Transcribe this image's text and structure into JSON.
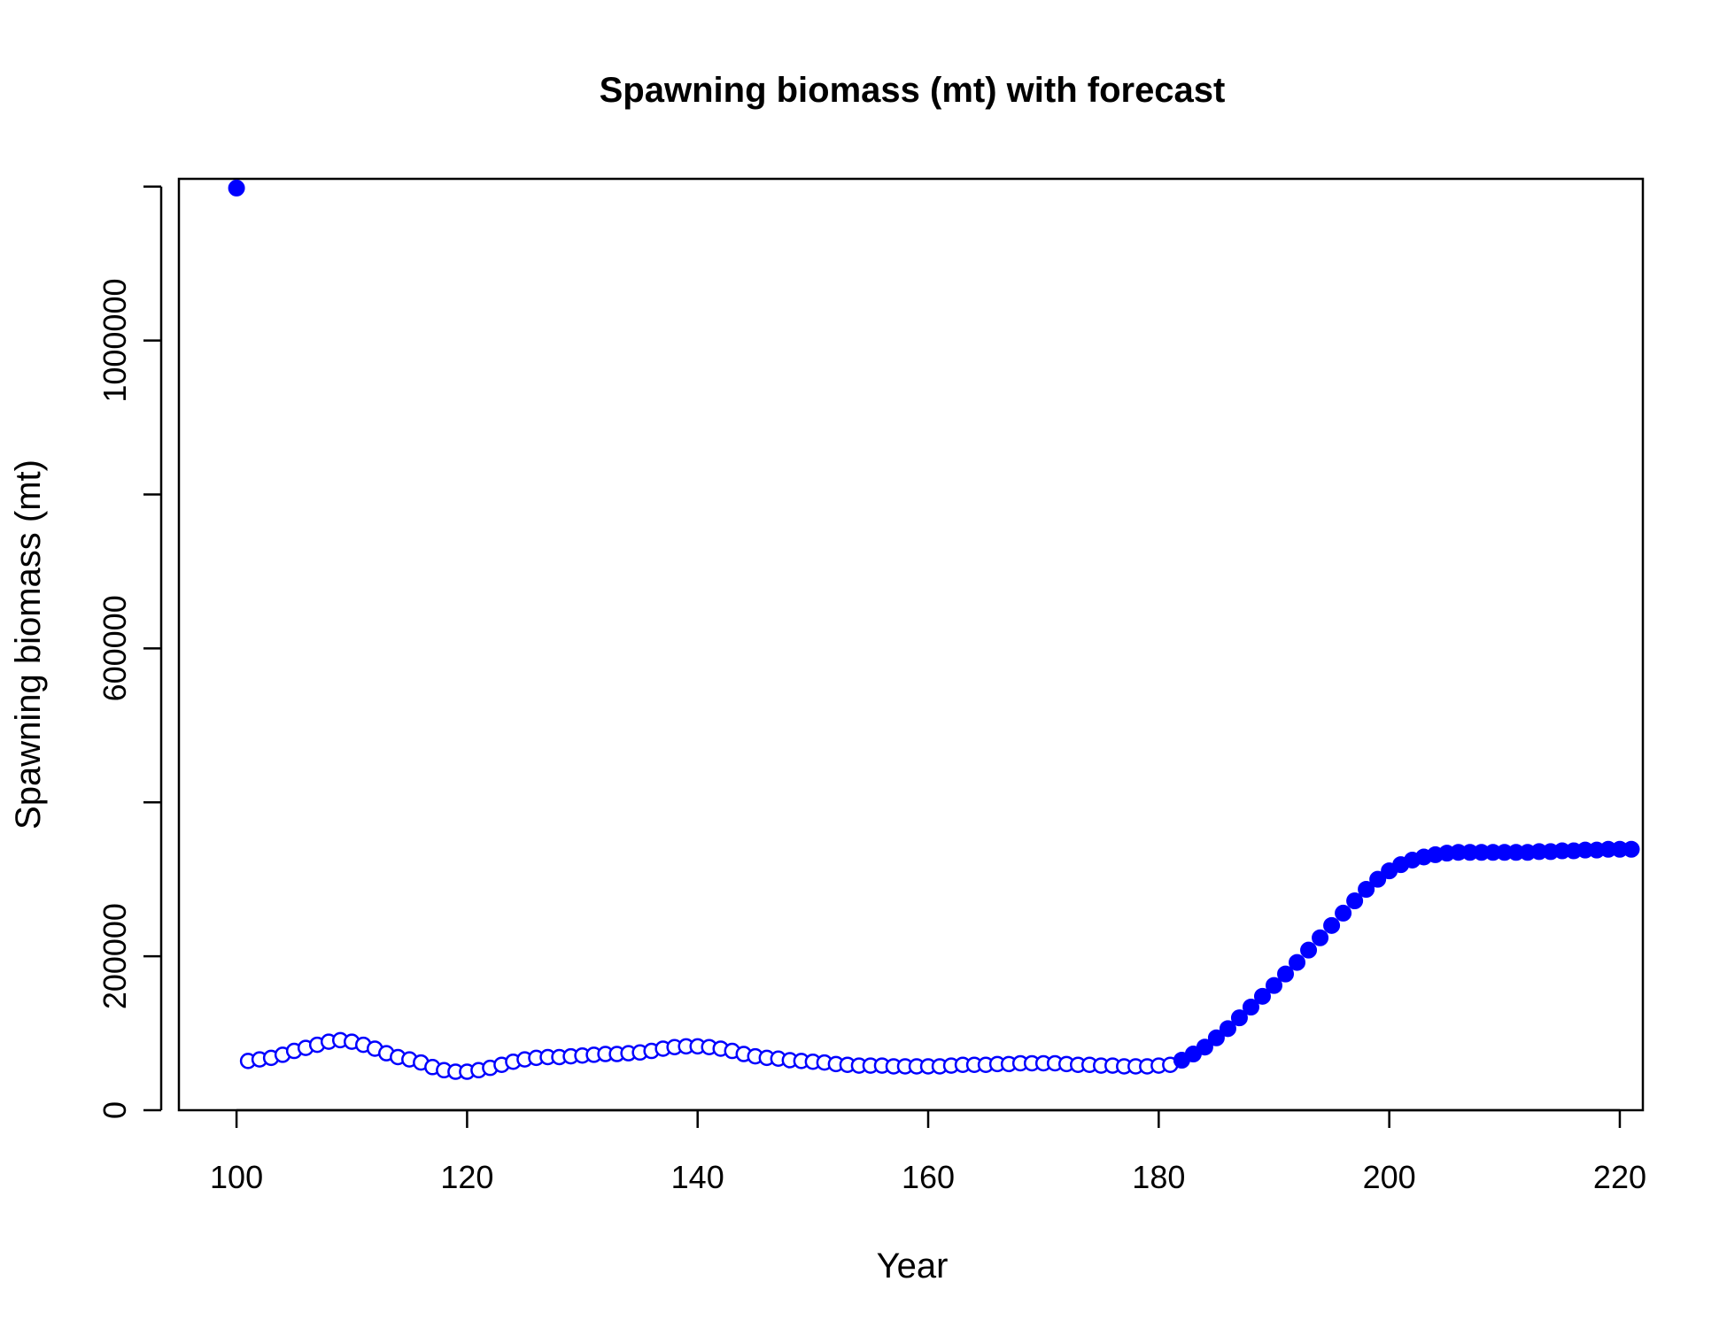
{
  "chart_data": {
    "type": "scatter",
    "title": "Spawning biomass (mt) with forecast",
    "xlabel": "Year",
    "ylabel": "Spawning biomass (mt)",
    "xlim": [
      95,
      222
    ],
    "ylim": [
      0,
      1210000
    ],
    "xticks": [
      100,
      120,
      140,
      160,
      180,
      200,
      220
    ],
    "yticks": [
      0,
      200000,
      400000,
      600000,
      800000,
      1000000,
      1200000
    ],
    "ytick_labels": [
      "0",
      "200000",
      "",
      "600000",
      "",
      "1000000",
      ""
    ],
    "grid": false,
    "color": "#0000ff",
    "series": [
      {
        "marker": "filled-circle",
        "x": [
          100
        ],
        "y": [
          1198000
        ]
      },
      {
        "marker": "open-circle",
        "x": [
          101,
          102,
          103,
          104,
          105,
          106,
          107,
          108,
          109,
          110,
          111,
          112,
          113,
          114,
          115,
          116,
          117,
          118,
          119,
          120,
          121,
          122,
          123,
          124,
          125,
          126,
          127,
          128,
          129,
          130,
          131,
          132,
          133,
          134,
          135,
          136,
          137,
          138,
          139,
          140,
          141,
          142,
          143,
          144,
          145,
          146,
          147,
          148,
          149,
          150,
          151,
          152,
          153,
          154,
          155,
          156,
          157,
          158,
          159,
          160,
          161,
          162,
          163,
          164,
          165,
          166,
          167,
          168,
          169,
          170,
          171,
          172,
          173,
          174,
          175,
          176,
          177,
          178,
          179,
          180,
          181
        ],
        "y": [
          64000,
          66000,
          68000,
          72000,
          77000,
          81000,
          85000,
          89000,
          91000,
          89000,
          85000,
          80000,
          74000,
          69000,
          66000,
          62000,
          56000,
          52000,
          50000,
          50000,
          52000,
          55000,
          59000,
          63000,
          66000,
          68000,
          69000,
          69000,
          70000,
          71000,
          72000,
          73000,
          73000,
          74000,
          75000,
          77000,
          80000,
          82000,
          83000,
          83000,
          82000,
          80000,
          77000,
          73000,
          70000,
          68000,
          67000,
          65000,
          64000,
          63000,
          62000,
          60000,
          59000,
          58000,
          58000,
          58000,
          57000,
          57000,
          57000,
          57000,
          57000,
          58000,
          59000,
          59000,
          59000,
          60000,
          60000,
          61000,
          61000,
          61000,
          61000,
          60000,
          59000,
          59000,
          58000,
          58000,
          57000,
          57000,
          57000,
          58000,
          59000
        ]
      },
      {
        "marker": "filled-circle",
        "x": [
          182,
          183,
          184,
          185,
          186,
          187,
          188,
          189,
          190,
          191,
          192,
          193,
          194,
          195,
          196,
          197,
          198,
          199,
          200,
          201,
          202,
          203,
          204,
          205,
          206,
          207,
          208,
          209,
          210,
          211,
          212,
          213,
          214,
          215,
          216,
          217,
          218,
          219,
          220,
          221
        ],
        "y": [
          65000,
          73000,
          82000,
          94000,
          106000,
          120000,
          134000,
          148000,
          162000,
          177000,
          192000,
          208000,
          224000,
          240000,
          256000,
          272000,
          287000,
          300000,
          311000,
          319000,
          325000,
          329000,
          332000,
          334000,
          335000,
          335000,
          335000,
          335000,
          335000,
          335000,
          335000,
          336000,
          336000,
          337000,
          337000,
          338000,
          338000,
          339000,
          339000,
          339000
        ]
      }
    ]
  }
}
